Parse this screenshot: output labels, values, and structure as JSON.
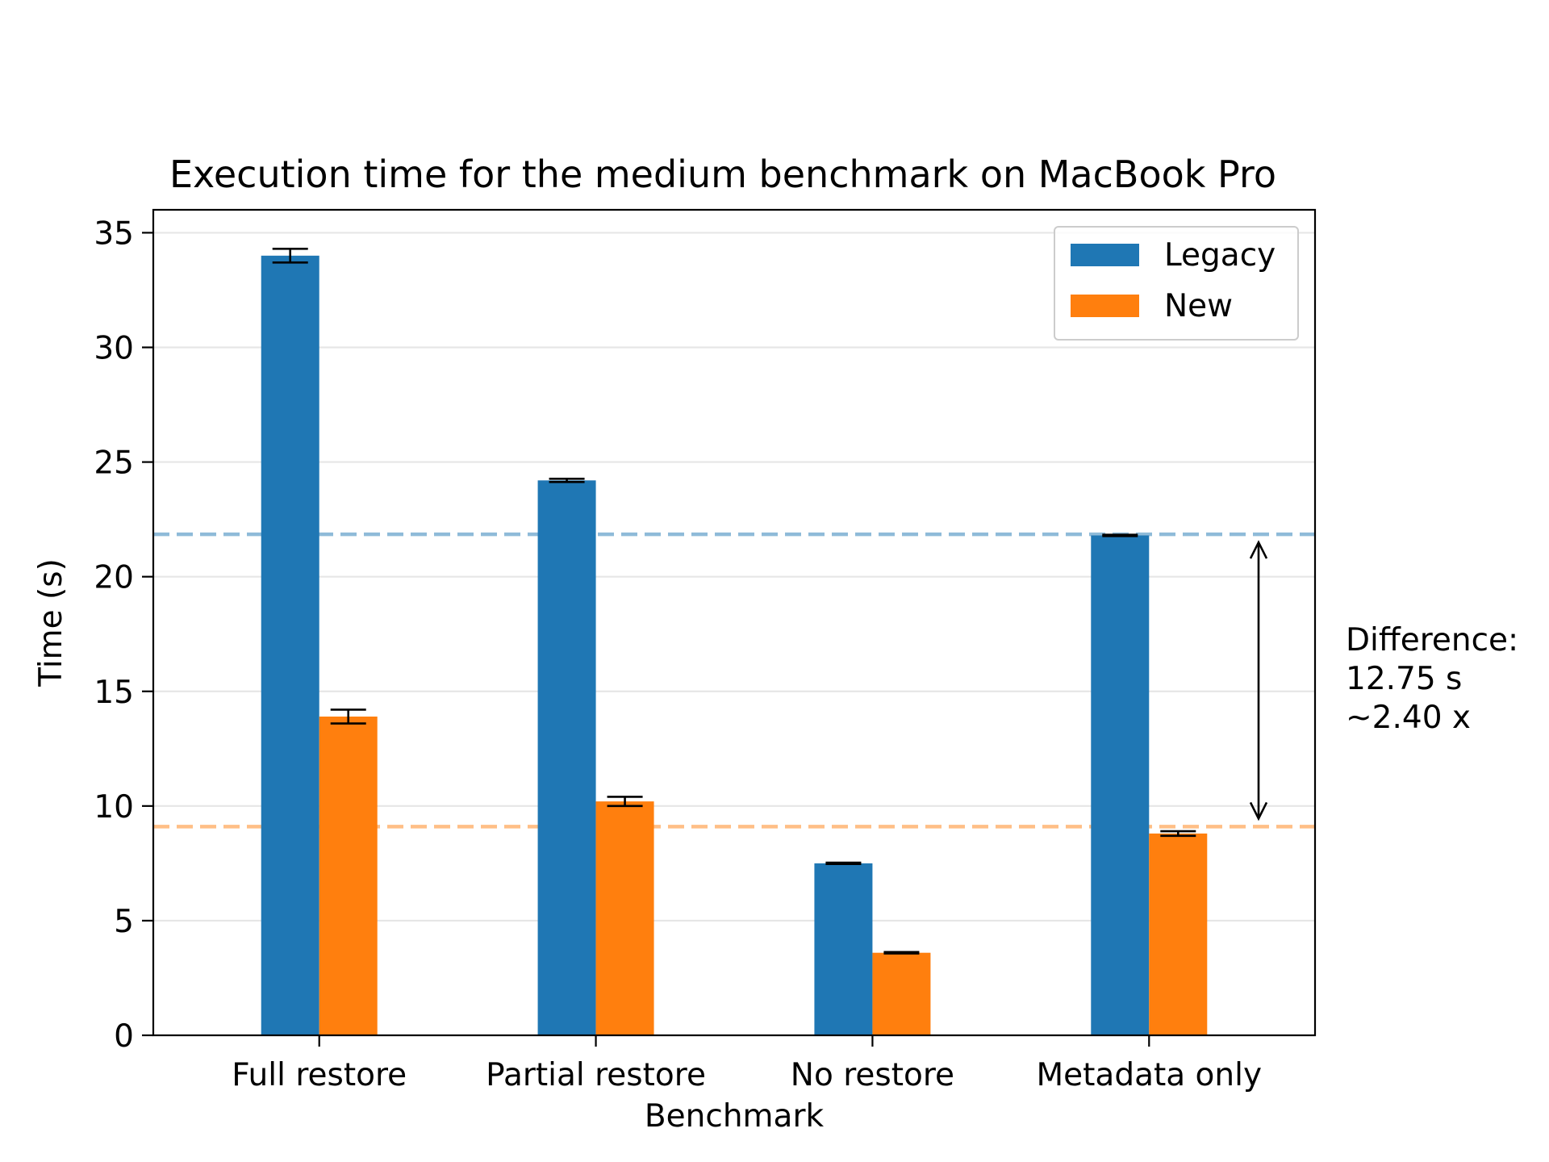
{
  "chart_data": {
    "type": "bar",
    "title": "Execution time for the medium benchmark on MacBook Pro",
    "xlabel": "Benchmark",
    "ylabel": "Time (s)",
    "categories": [
      "Full restore",
      "Partial restore",
      "No restore",
      "Metadata only"
    ],
    "ylim": [
      0,
      36
    ],
    "yticks": [
      0,
      5,
      10,
      15,
      20,
      25,
      30,
      35
    ],
    "grid": "horizontal",
    "legend_position": "top-right",
    "series": [
      {
        "name": "Legacy",
        "color": "#1f77b4",
        "values": [
          34.0,
          24.2,
          7.5,
          21.8
        ],
        "errors": [
          0.3,
          0.07,
          0.03,
          0.03
        ]
      },
      {
        "name": "New",
        "color": "#ff7f0e",
        "values": [
          13.9,
          10.2,
          3.6,
          8.8
        ],
        "errors": [
          0.3,
          0.2,
          0.03,
          0.1
        ]
      }
    ],
    "reference_lines": [
      {
        "value": 21.85,
        "color": "#1f77b4",
        "style": "dashed"
      },
      {
        "value": 9.1,
        "color": "#ff7f0e",
        "style": "dashed"
      }
    ],
    "annotation": {
      "lines": [
        "Difference:",
        "12.75 s",
        "~2.40 x"
      ],
      "arrow_from": 21.85,
      "arrow_to": 9.1
    }
  }
}
